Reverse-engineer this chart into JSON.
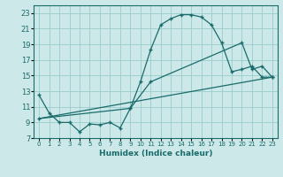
{
  "xlabel": "Humidex (Indice chaleur)",
  "bg_color": "#cce8e8",
  "grid_color": "#99cccc",
  "line_color": "#1a6b6b",
  "xlim": [
    -0.5,
    23.5
  ],
  "ylim": [
    7,
    24
  ],
  "xticks": [
    0,
    1,
    2,
    3,
    4,
    5,
    6,
    7,
    8,
    9,
    10,
    11,
    12,
    13,
    14,
    15,
    16,
    17,
    18,
    19,
    20,
    21,
    22,
    23
  ],
  "yticks": [
    7,
    9,
    11,
    13,
    15,
    17,
    19,
    21,
    23
  ],
  "line1_x": [
    0,
    1,
    2,
    3,
    4,
    5,
    6,
    7,
    8,
    9,
    10,
    11,
    12,
    13,
    14,
    15,
    16,
    17,
    18,
    19,
    20,
    21,
    22,
    23
  ],
  "line1_y": [
    12.5,
    10.2,
    9.0,
    9.0,
    7.8,
    8.8,
    8.7,
    9.0,
    8.3,
    10.8,
    14.2,
    18.3,
    21.5,
    22.3,
    22.8,
    22.8,
    22.5,
    21.5,
    19.2,
    15.5,
    15.8,
    16.2,
    14.8,
    14.8
  ],
  "line2_x": [
    0,
    23
  ],
  "line2_y": [
    9.5,
    14.8
  ],
  "line3_x": [
    0,
    9,
    11,
    20,
    21,
    22,
    23
  ],
  "line3_y": [
    9.5,
    10.8,
    14.2,
    19.2,
    15.8,
    16.2,
    14.8
  ]
}
